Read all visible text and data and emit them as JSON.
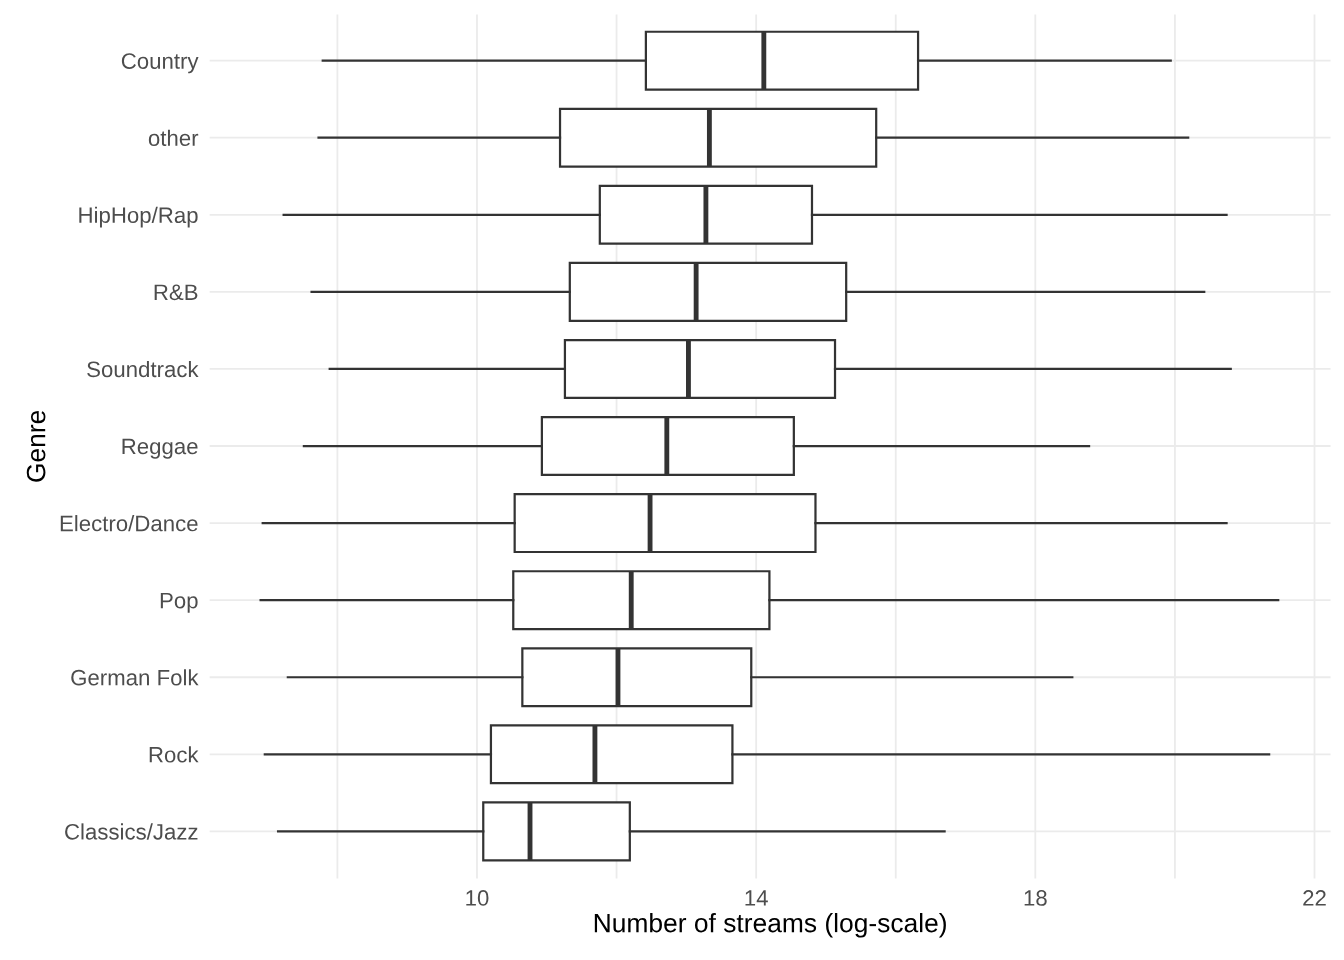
{
  "chart_data": {
    "type": "box",
    "orientation": "horizontal",
    "xlabel": "Number of streams (log-scale)",
    "ylabel": "Genre",
    "categories": [
      "Country",
      "other",
      "HipHop/Rap",
      "R&B",
      "Soundtrack",
      "Reggae",
      "Electro/Dance",
      "Pop",
      "German Folk",
      "Rock",
      "Classics/Jazz"
    ],
    "boxes": [
      {
        "low": 7.79,
        "q1": 12.42,
        "median": 14.11,
        "q3": 16.32,
        "high": 19.94
      },
      {
        "low": 7.73,
        "q1": 11.19,
        "median": 13.33,
        "q3": 15.72,
        "high": 20.19
      },
      {
        "low": 7.23,
        "q1": 11.76,
        "median": 13.28,
        "q3": 14.8,
        "high": 20.74
      },
      {
        "low": 7.63,
        "q1": 11.33,
        "median": 13.14,
        "q3": 15.29,
        "high": 20.42
      },
      {
        "low": 7.89,
        "q1": 11.26,
        "median": 13.03,
        "q3": 15.13,
        "high": 20.8
      },
      {
        "low": 7.52,
        "q1": 10.93,
        "median": 12.72,
        "q3": 14.54,
        "high": 18.77
      },
      {
        "low": 6.93,
        "q1": 10.54,
        "median": 12.48,
        "q3": 14.85,
        "high": 20.74
      },
      {
        "low": 6.9,
        "q1": 10.52,
        "median": 12.21,
        "q3": 14.19,
        "high": 21.48
      },
      {
        "low": 7.29,
        "q1": 10.65,
        "median": 12.02,
        "q3": 13.93,
        "high": 18.53
      },
      {
        "low": 6.96,
        "q1": 10.2,
        "median": 11.69,
        "q3": 13.66,
        "high": 21.35
      },
      {
        "low": 7.15,
        "q1": 10.09,
        "median": 10.76,
        "q3": 12.19,
        "high": 16.7
      }
    ],
    "color": "#333333",
    "xlim": [
      6.17,
      22.23
    ],
    "xticks": [
      {
        "value": 8,
        "label": null
      },
      10,
      {
        "value": 12,
        "label": null
      },
      14,
      {
        "value": 16,
        "label": null
      },
      18,
      {
        "value": 20,
        "label": null
      },
      22
    ],
    "grid": true
  }
}
